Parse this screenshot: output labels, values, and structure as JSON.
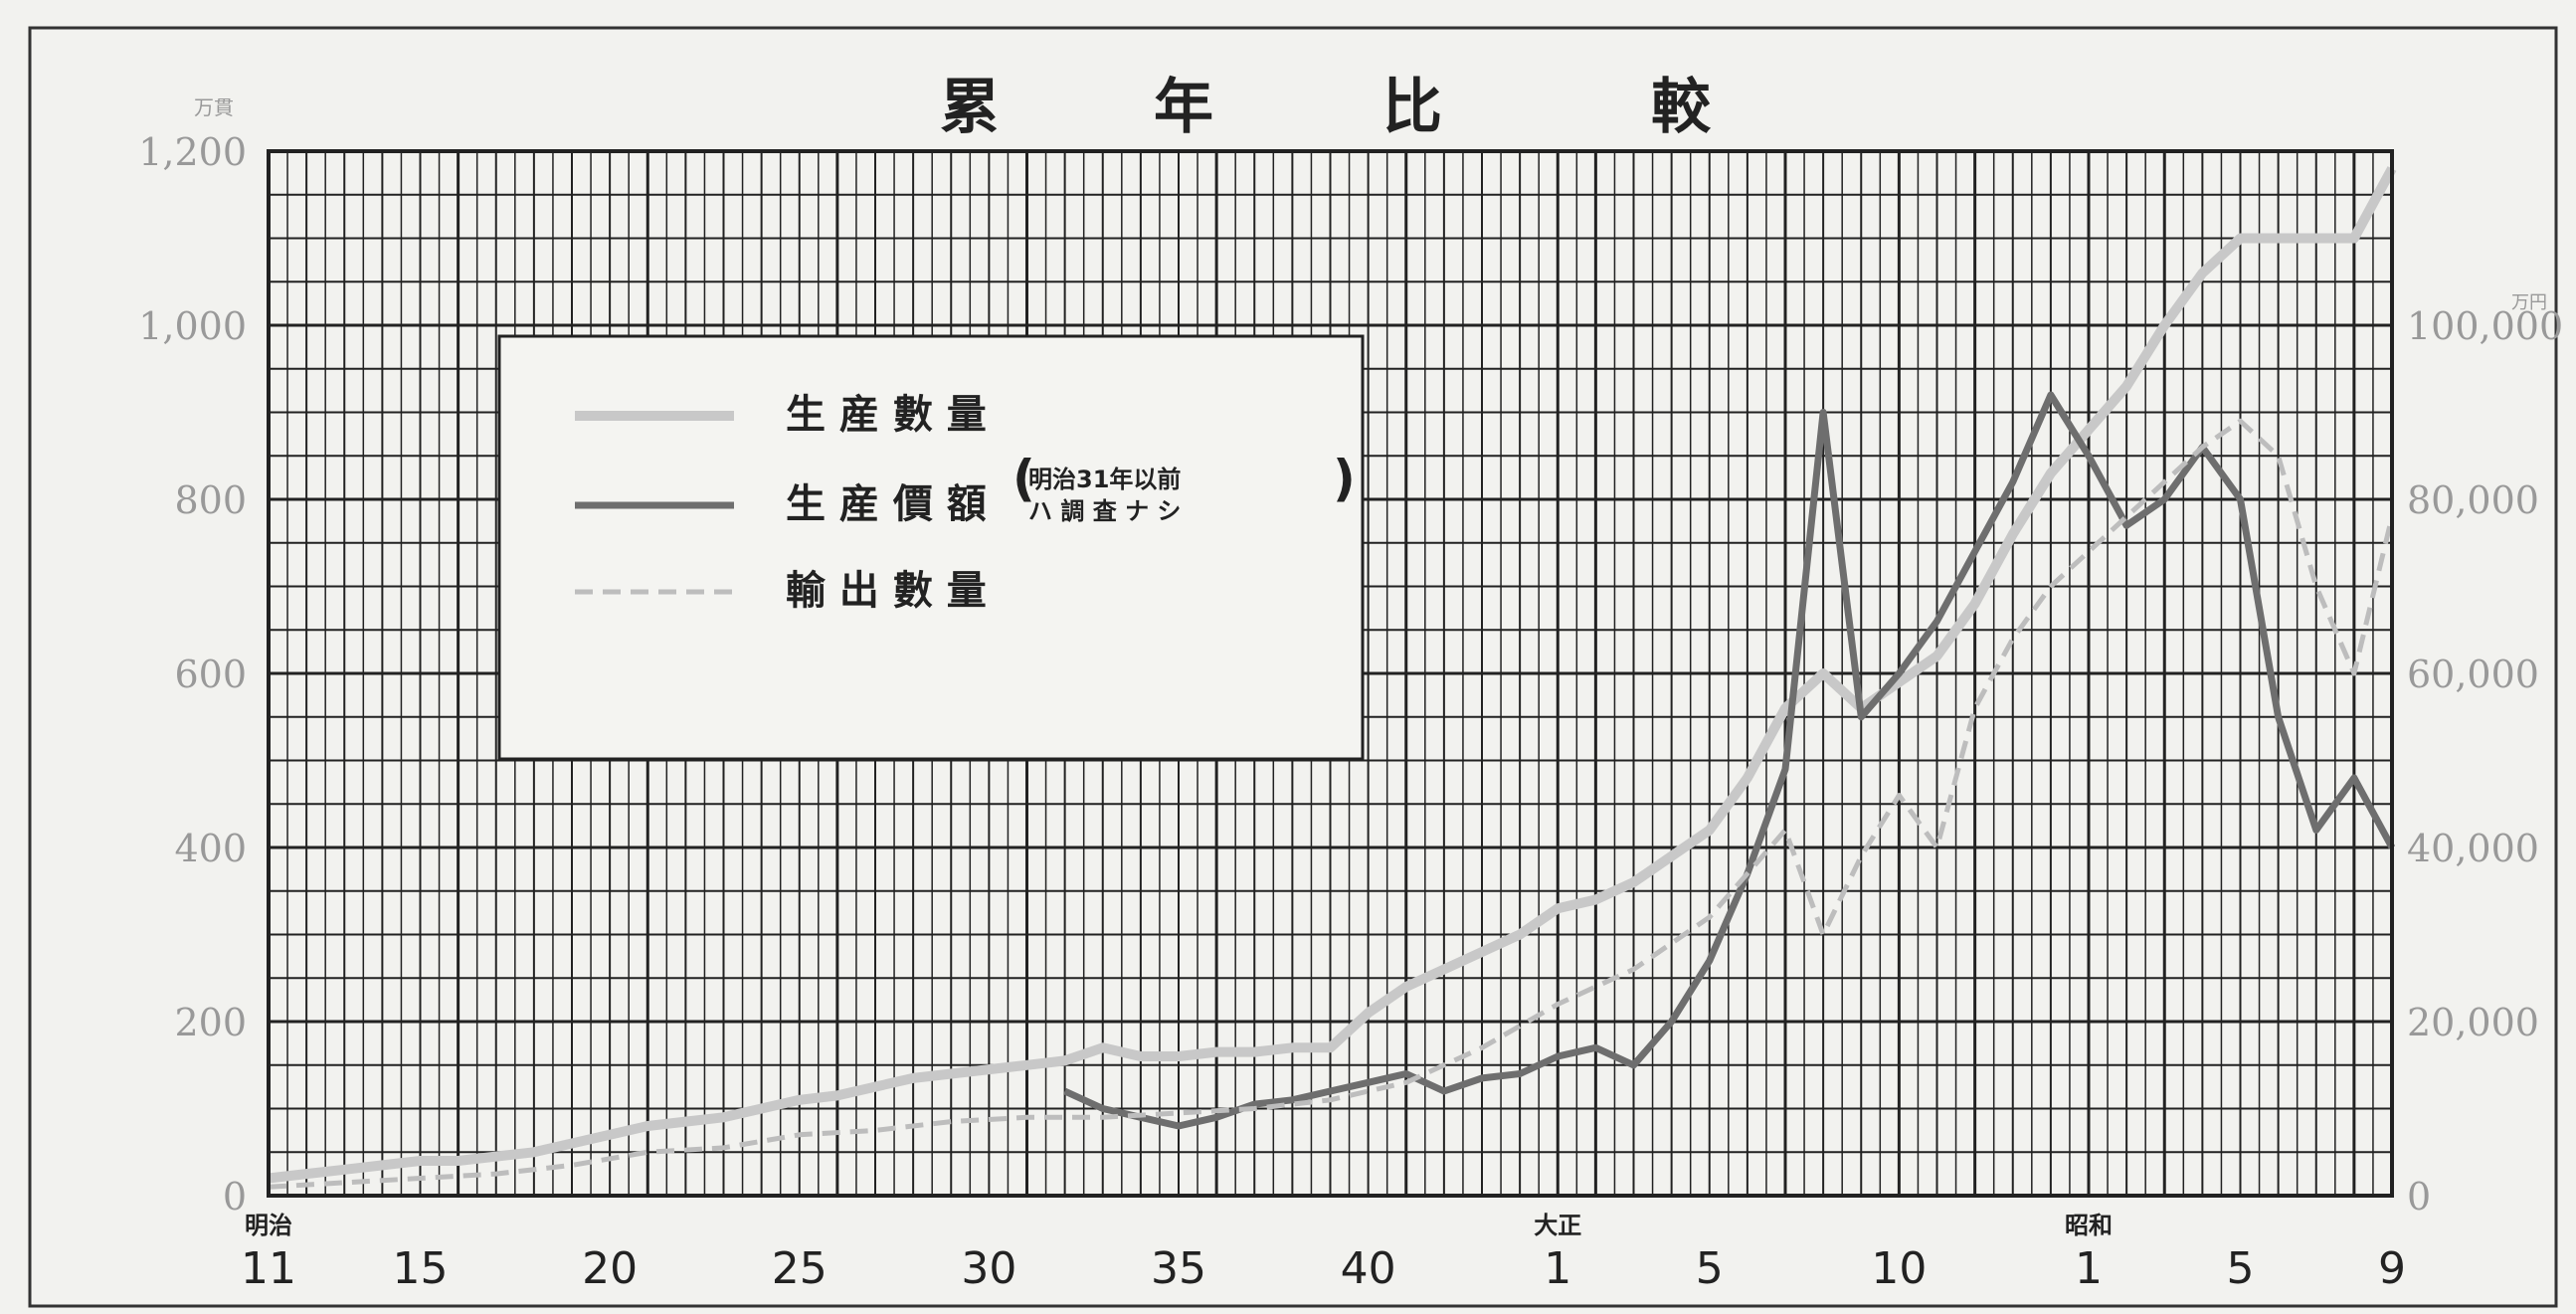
{
  "chart_data": {
    "type": "line",
    "title": "累 年 比 較",
    "left_axis": {
      "unit": "万貫",
      "ticks": [
        "0",
        "200",
        "400",
        "600",
        "800",
        "1,000",
        "1,200"
      ],
      "ylim": [
        0,
        1200
      ]
    },
    "right_axis": {
      "unit": "万円",
      "ticks": [
        "0",
        "20,000",
        "40,000",
        "60,000",
        "80,000",
        "100,000"
      ],
      "ylim": [
        0,
        120000
      ]
    },
    "x_ticks": [
      {
        "year": 1878,
        "label": "11",
        "era": "明治"
      },
      {
        "year": 1882,
        "label": "15"
      },
      {
        "year": 1887,
        "label": "20"
      },
      {
        "year": 1892,
        "label": "25"
      },
      {
        "year": 1897,
        "label": "30"
      },
      {
        "year": 1902,
        "label": "35"
      },
      {
        "year": 1907,
        "label": "40"
      },
      {
        "year": 1912,
        "label": "1",
        "era": "大正"
      },
      {
        "year": 1916,
        "label": "5"
      },
      {
        "year": 1921,
        "label": "10"
      },
      {
        "year": 1926,
        "label": "1",
        "era": "昭和"
      },
      {
        "year": 1930,
        "label": "5"
      },
      {
        "year": 1934,
        "label": "9"
      }
    ],
    "xlim": [
      1878,
      1934
    ],
    "legend": [
      {
        "label": "生 産 數 量",
        "style": "light-solid"
      },
      {
        "label": "生 産 價 額",
        "note": [
          "明治31年以前",
          "ハ 調 査 ナ シ"
        ],
        "style": "dark-solid"
      },
      {
        "label": "輸 出 數 量",
        "style": "light-dashed"
      }
    ],
    "series": [
      {
        "key": "production_quantity",
        "axis": "left",
        "color": "#c8c8c8",
        "points": [
          [
            1878,
            20
          ],
          [
            1879,
            25
          ],
          [
            1880,
            30
          ],
          [
            1881,
            35
          ],
          [
            1882,
            40
          ],
          [
            1883,
            40
          ],
          [
            1884,
            45
          ],
          [
            1885,
            50
          ],
          [
            1886,
            60
          ],
          [
            1887,
            70
          ],
          [
            1888,
            80
          ],
          [
            1889,
            85
          ],
          [
            1890,
            90
          ],
          [
            1891,
            100
          ],
          [
            1892,
            110
          ],
          [
            1893,
            115
          ],
          [
            1894,
            125
          ],
          [
            1895,
            135
          ],
          [
            1896,
            140
          ],
          [
            1897,
            145
          ],
          [
            1898,
            150
          ],
          [
            1899,
            155
          ],
          [
            1900,
            170
          ],
          [
            1901,
            160
          ],
          [
            1902,
            160
          ],
          [
            1903,
            165
          ],
          [
            1904,
            165
          ],
          [
            1905,
            170
          ],
          [
            1906,
            170
          ],
          [
            1907,
            210
          ],
          [
            1908,
            240
          ],
          [
            1909,
            260
          ],
          [
            1910,
            280
          ],
          [
            1911,
            300
          ],
          [
            1912,
            330
          ],
          [
            1913,
            340
          ],
          [
            1914,
            360
          ],
          [
            1915,
            390
          ],
          [
            1916,
            420
          ],
          [
            1917,
            480
          ],
          [
            1918,
            560
          ],
          [
            1919,
            600
          ],
          [
            1920,
            560
          ],
          [
            1921,
            590
          ],
          [
            1922,
            620
          ],
          [
            1923,
            680
          ],
          [
            1924,
            760
          ],
          [
            1925,
            830
          ],
          [
            1926,
            880
          ],
          [
            1927,
            930
          ],
          [
            1928,
            1000
          ],
          [
            1929,
            1060
          ],
          [
            1930,
            1100
          ],
          [
            1931,
            1100
          ],
          [
            1932,
            1100
          ],
          [
            1933,
            1100
          ],
          [
            1934,
            1180
          ]
        ]
      },
      {
        "key": "production_value",
        "axis": "right",
        "color": "#6e6e6e",
        "points": [
          [
            1899,
            12000
          ],
          [
            1900,
            10000
          ],
          [
            1901,
            9000
          ],
          [
            1902,
            8000
          ],
          [
            1903,
            9000
          ],
          [
            1904,
            10500
          ],
          [
            1905,
            11000
          ],
          [
            1906,
            12000
          ],
          [
            1907,
            13000
          ],
          [
            1908,
            14000
          ],
          [
            1909,
            12000
          ],
          [
            1910,
            13500
          ],
          [
            1911,
            14000
          ],
          [
            1912,
            16000
          ],
          [
            1913,
            17000
          ],
          [
            1914,
            15000
          ],
          [
            1915,
            20000
          ],
          [
            1916,
            27000
          ],
          [
            1917,
            37000
          ],
          [
            1918,
            49000
          ],
          [
            1919,
            90000
          ],
          [
            1920,
            55000
          ],
          [
            1921,
            60000
          ],
          [
            1922,
            66000
          ],
          [
            1923,
            74000
          ],
          [
            1924,
            82000
          ],
          [
            1925,
            92000
          ],
          [
            1926,
            85000
          ],
          [
            1927,
            77000
          ],
          [
            1928,
            80000
          ],
          [
            1929,
            86000
          ],
          [
            1930,
            80000
          ],
          [
            1931,
            55000
          ],
          [
            1932,
            42000
          ],
          [
            1933,
            48000
          ],
          [
            1934,
            40000
          ]
        ]
      },
      {
        "key": "export_quantity",
        "axis": "left",
        "color": "#bdbdbd",
        "points": [
          [
            1878,
            10
          ],
          [
            1880,
            15
          ],
          [
            1882,
            20
          ],
          [
            1884,
            25
          ],
          [
            1886,
            35
          ],
          [
            1888,
            50
          ],
          [
            1890,
            55
          ],
          [
            1892,
            70
          ],
          [
            1894,
            75
          ],
          [
            1896,
            85
          ],
          [
            1898,
            90
          ],
          [
            1900,
            90
          ],
          [
            1902,
            95
          ],
          [
            1904,
            100
          ],
          [
            1906,
            110
          ],
          [
            1908,
            130
          ],
          [
            1910,
            170
          ],
          [
            1912,
            220
          ],
          [
            1914,
            260
          ],
          [
            1916,
            320
          ],
          [
            1918,
            420
          ],
          [
            1919,
            300
          ],
          [
            1920,
            390
          ],
          [
            1921,
            460
          ],
          [
            1922,
            400
          ],
          [
            1923,
            560
          ],
          [
            1924,
            640
          ],
          [
            1925,
            700
          ],
          [
            1926,
            740
          ],
          [
            1927,
            780
          ],
          [
            1928,
            820
          ],
          [
            1929,
            860
          ],
          [
            1930,
            890
          ],
          [
            1931,
            850
          ],
          [
            1932,
            700
          ],
          [
            1933,
            600
          ],
          [
            1934,
            780
          ]
        ]
      }
    ],
    "grid": true
  }
}
